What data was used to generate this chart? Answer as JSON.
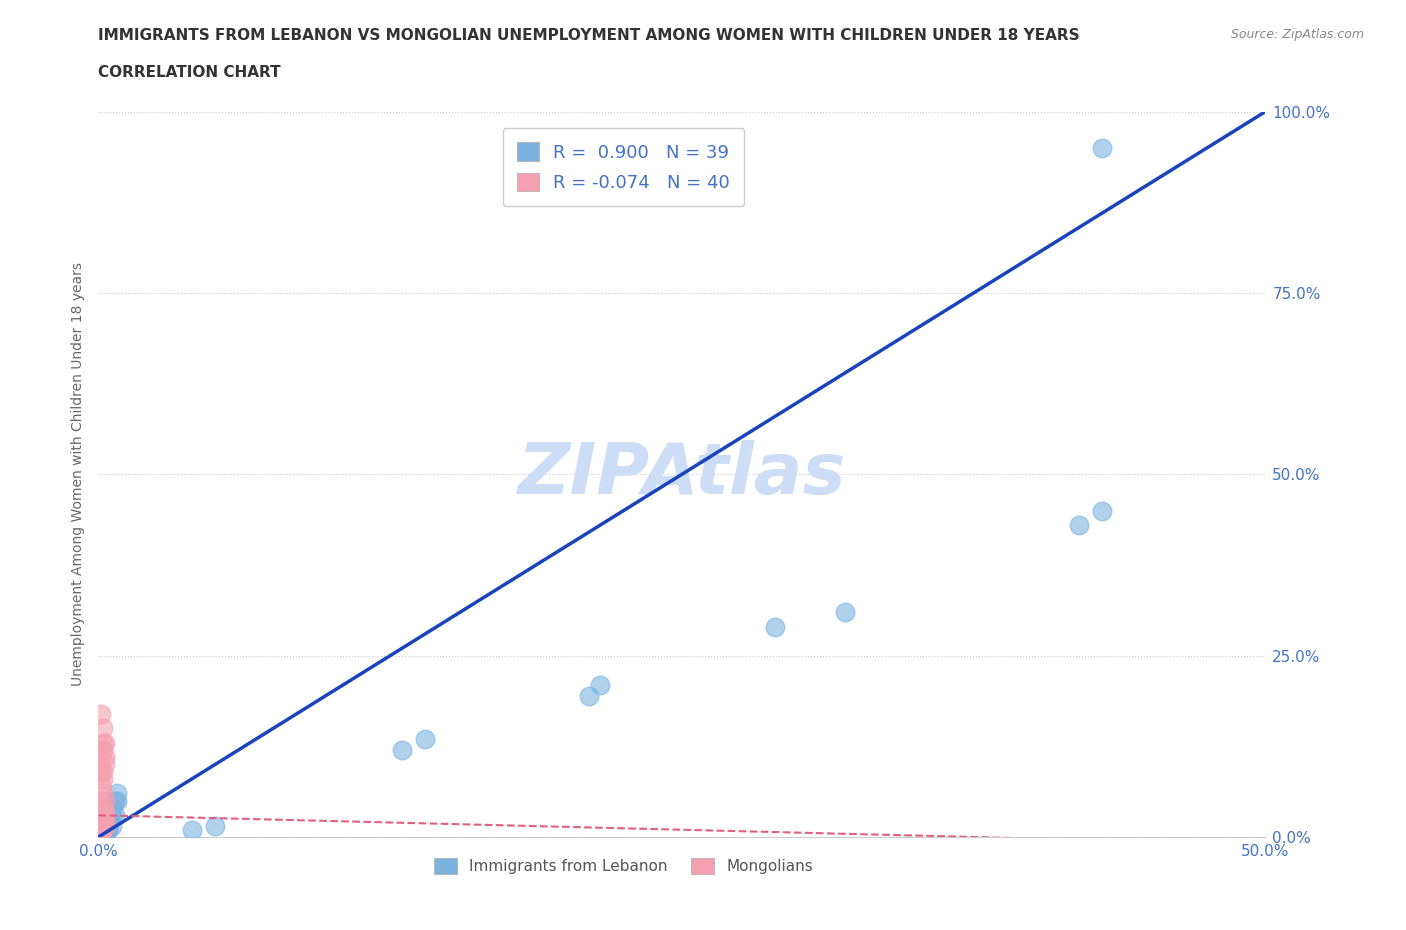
{
  "title_line1": "IMMIGRANTS FROM LEBANON VS MONGOLIAN UNEMPLOYMENT AMONG WOMEN WITH CHILDREN UNDER 18 YEARS",
  "title_line2": "CORRELATION CHART",
  "source_text": "Source: ZipAtlas.com",
  "ylabel": "Unemployment Among Women with Children Under 18 years",
  "xlim": [
    0.0,
    0.5
  ],
  "ylim": [
    0.0,
    1.0
  ],
  "xticks": [
    0.0,
    0.1,
    0.2,
    0.3,
    0.4,
    0.5
  ],
  "xticklabels": [
    "0.0%",
    "",
    "",
    "",
    "",
    "50.0%"
  ],
  "yticks": [
    0.0,
    0.25,
    0.5,
    0.75,
    1.0
  ],
  "yticklabels": [
    "0.0%",
    "25.0%",
    "50.0%",
    "75.0%",
    "100.0%"
  ],
  "R_blue": 0.9,
  "N_blue": 39,
  "R_pink": -0.074,
  "N_pink": 40,
  "blue_color": "#7ab3e0",
  "pink_color": "#f4a0b0",
  "blue_line_color": "#1a44bb",
  "pink_line_color": "#e06080",
  "watermark": "ZIPAtlas",
  "watermark_color": "#ccddf5",
  "legend_label_blue": "Immigrants from Lebanon",
  "legend_label_pink": "Mongolians",
  "blue_scatter_x": [
    0.002,
    0.003,
    0.005,
    0.004,
    0.006,
    0.008,
    0.003,
    0.004,
    0.007,
    0.002,
    0.003,
    0.005,
    0.006,
    0.004,
    0.003,
    0.002,
    0.001,
    0.003,
    0.005,
    0.007,
    0.008,
    0.004,
    0.003,
    0.002,
    0.004,
    0.003,
    0.005,
    0.006,
    0.002,
    0.04,
    0.05,
    0.13,
    0.14,
    0.21,
    0.215,
    0.29,
    0.32,
    0.42,
    0.43
  ],
  "blue_scatter_y": [
    0.025,
    0.03,
    0.04,
    0.02,
    0.03,
    0.05,
    0.01,
    0.02,
    0.03,
    0.01,
    0.02,
    0.03,
    0.04,
    0.01,
    0.02,
    0.01,
    0.02,
    0.03,
    0.04,
    0.05,
    0.06,
    0.01,
    0.02,
    0.015,
    0.025,
    0.02,
    0.035,
    0.015,
    0.01,
    0.01,
    0.015,
    0.12,
    0.135,
    0.195,
    0.21,
    0.29,
    0.31,
    0.43,
    0.45
  ],
  "blue_outlier_x": [
    0.43
  ],
  "blue_outlier_y": [
    0.95
  ],
  "pink_scatter_x": [
    0.001,
    0.002,
    0.003,
    0.002,
    0.001,
    0.002,
    0.003,
    0.002,
    0.001,
    0.002,
    0.003,
    0.002,
    0.001,
    0.002,
    0.003,
    0.001,
    0.002,
    0.003,
    0.002,
    0.001,
    0.002,
    0.001,
    0.002,
    0.003,
    0.002,
    0.001,
    0.002,
    0.001,
    0.002,
    0.003,
    0.002,
    0.001,
    0.002,
    0.003,
    0.002,
    0.001,
    0.002,
    0.003,
    0.002,
    0.001
  ],
  "pink_scatter_y": [
    0.17,
    0.15,
    0.13,
    0.12,
    0.1,
    0.09,
    0.11,
    0.13,
    0.09,
    0.12,
    0.1,
    0.08,
    0.07,
    0.06,
    0.05,
    0.05,
    0.04,
    0.035,
    0.025,
    0.03,
    0.04,
    0.03,
    0.02,
    0.015,
    0.02,
    0.01,
    0.015,
    0.01,
    0.02,
    0.03,
    0.02,
    0.01,
    0.015,
    0.02,
    0.01,
    0.01,
    0.015,
    0.02,
    0.01,
    0.005
  ],
  "blue_line_x": [
    0.0,
    0.5
  ],
  "blue_line_y": [
    0.0,
    1.0
  ],
  "pink_line_x": [
    0.0,
    0.5
  ],
  "pink_line_y": [
    0.03,
    -0.01
  ],
  "grid_color": "#cccccc",
  "background_color": "#ffffff",
  "title_color": "#333333",
  "tick_color": "#4472c4",
  "axis_label_color": "#666666"
}
